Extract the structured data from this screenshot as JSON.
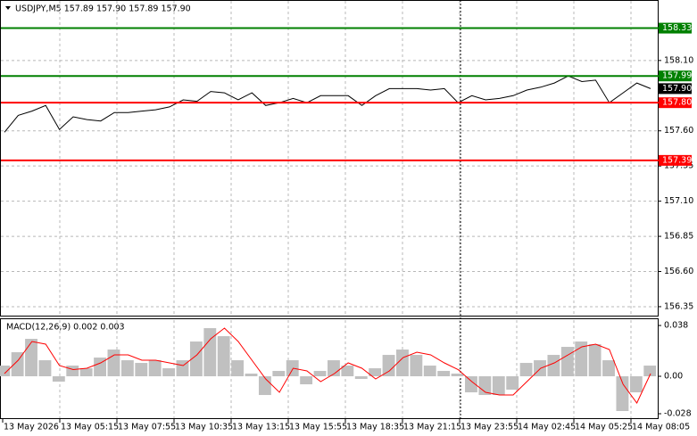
{
  "chart_data": [
    {
      "type": "line",
      "title": "USDJPY,M5  157.89 157.90 157.89 157.90",
      "x_axis_labels": [
        "13 May 2026",
        "13 May 05:15",
        "13 May 07:55",
        "13 May 10:35",
        "13 May 13:15",
        "13 May 15:55",
        "13 May 18:35",
        "13 May 21:15",
        "13 May 23:55",
        "14 May 02:45",
        "14 May 05:25",
        "14 May 08:05"
      ],
      "values": [
        157.59,
        157.71,
        157.74,
        157.78,
        157.61,
        157.7,
        157.68,
        157.67,
        157.73,
        157.73,
        157.74,
        157.75,
        157.77,
        157.82,
        157.81,
        157.88,
        157.87,
        157.82,
        157.87,
        157.78,
        157.8,
        157.83,
        157.8,
        157.85,
        157.85,
        157.85,
        157.78,
        157.85,
        157.9,
        157.9,
        157.9,
        157.89,
        157.9,
        157.8,
        157.85,
        157.82,
        157.83,
        157.85,
        157.89,
        157.91,
        157.94,
        157.99,
        157.95,
        157.96,
        157.8,
        157.87,
        157.94,
        157.9
      ],
      "color": "#000000",
      "ylim": [
        156.28,
        158.53
      ],
      "yticks": [
        {
          "value": 158.1,
          "label": "158.10"
        },
        {
          "value": 157.6,
          "label": "157.60"
        },
        {
          "value": 157.35,
          "label": "157.35"
        },
        {
          "value": 157.1,
          "label": "157.10"
        },
        {
          "value": 156.85,
          "label": "156.85"
        },
        {
          "value": 156.6,
          "label": "156.60"
        },
        {
          "value": 156.35,
          "label": "156.35"
        }
      ],
      "grid": true,
      "levels": [
        {
          "value": 158.33,
          "label": "158.33",
          "color": "#008000"
        },
        {
          "value": 157.99,
          "label": "157.99",
          "color": "#008000"
        },
        {
          "value": 157.8,
          "label": "157.80",
          "color": "#ff0000"
        },
        {
          "value": 157.39,
          "label": "157.39",
          "color": "#ff0000"
        }
      ],
      "last_price": {
        "value": 157.9,
        "label": "157.90",
        "color": "#000000"
      }
    },
    {
      "type": "macd",
      "title": "MACD(12,26,9) 0.002 0.003",
      "histogram": {
        "color": "#c0c0c0",
        "values": [
          0.008,
          0.018,
          0.028,
          0.012,
          -0.004,
          0.008,
          0.006,
          0.014,
          0.02,
          0.012,
          0.01,
          0.012,
          0.006,
          0.012,
          0.026,
          0.036,
          0.03,
          0.012,
          0.002,
          -0.014,
          0.004,
          0.012,
          -0.006,
          0.004,
          0.012,
          0.008,
          -0.002,
          0.006,
          0.016,
          0.02,
          0.016,
          0.008,
          0.004,
          0.002,
          -0.012,
          -0.014,
          -0.014,
          -0.01,
          0.01,
          0.012,
          0.016,
          0.022,
          0.026,
          0.024,
          0.012,
          -0.026,
          -0.012,
          0.008
        ]
      },
      "signal": {
        "color": "#ff0000",
        "values": [
          0.002,
          0.012,
          0.026,
          0.024,
          0.008,
          0.005,
          0.006,
          0.01,
          0.016,
          0.016,
          0.012,
          0.012,
          0.01,
          0.008,
          0.016,
          0.028,
          0.036,
          0.026,
          0.012,
          -0.002,
          -0.012,
          0.006,
          0.004,
          -0.004,
          0.002,
          0.01,
          0.006,
          -0.002,
          0.004,
          0.014,
          0.018,
          0.016,
          0.01,
          0.005,
          -0.004,
          -0.012,
          -0.014,
          -0.014,
          -0.004,
          0.006,
          0.01,
          0.016,
          0.022,
          0.024,
          0.02,
          -0.006,
          -0.02,
          0.002
        ]
      },
      "ylim": [
        -0.032,
        0.0427
      ],
      "yticks": [
        0.038,
        {
          "value": 0,
          "label": "0.00"
        },
        -0.028
      ]
    }
  ]
}
